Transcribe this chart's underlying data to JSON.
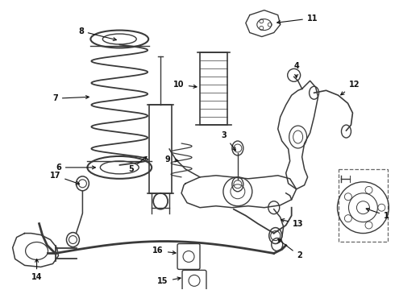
{
  "bg_color": "#ffffff",
  "fig_width": 4.9,
  "fig_height": 3.6,
  "dpi": 100,
  "line_color": "#3a3a3a",
  "label_color": "#111111",
  "label_fontsize": 7.0,
  "arrow_color": "#111111"
}
